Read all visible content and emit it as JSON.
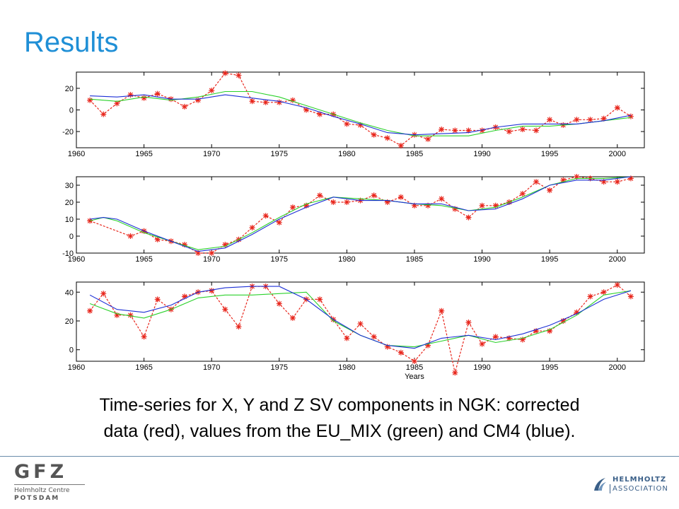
{
  "slide": {
    "title": "Results",
    "caption_line1": "Time-series for X, Y and  Z SV components in NGK: corrected",
    "caption_line2": "data (red), values from the  EU_MIX (green) and CM4 (blue).",
    "gfz_logo": "GFZ",
    "gfz_line1": "Helmholtz Centre",
    "gfz_line2": "POTSDAM",
    "helmholtz_line1": "HELMHOLTZ",
    "helmholtz_line2": "ASSOCIATION"
  },
  "colors": {
    "title": "#1f8fd6",
    "corrected": "#e8261c",
    "eu_mix": "#2bd12b",
    "cm4": "#1c2fd6"
  },
  "chart_data": [
    {
      "type": "line",
      "xlim": [
        1960,
        2002
      ],
      "ylim": [
        -35,
        35
      ],
      "xticks": [
        1960,
        1965,
        1970,
        1975,
        1980,
        1985,
        1990,
        1995,
        2000
      ],
      "yticks": [
        20,
        0,
        -20
      ],
      "ytick_labels": [
        "20",
        "0",
        "-20"
      ],
      "xlabel": "",
      "series": [
        {
          "key": "corrected",
          "color": "#e8261c",
          "markers": true,
          "x": [
            1961,
            1962,
            1963,
            1964,
            1965,
            1966,
            1967,
            1968,
            1969,
            1970,
            1971,
            1972,
            1973,
            1974,
            1975,
            1976,
            1977,
            1978,
            1979,
            1980,
            1981,
            1982,
            1983,
            1984,
            1985,
            1986,
            1987,
            1988,
            1989,
            1990,
            1991,
            1992,
            1993,
            1994,
            1995,
            1996,
            1997,
            1998,
            1999,
            2000,
            2001
          ],
          "values": [
            9,
            -4,
            6,
            14,
            11,
            15,
            10,
            3,
            9,
            18,
            34,
            32,
            8,
            7,
            7,
            9,
            0,
            -4,
            -4,
            -13,
            -14,
            -23,
            -26,
            -33,
            -23,
            -27,
            -18,
            -19,
            -19,
            -19,
            -16,
            -20,
            -18,
            -19,
            -9,
            -14,
            -9,
            -9,
            -8,
            2,
            -6
          ]
        },
        {
          "key": "eu_mix",
          "color": "#2bd12b",
          "markers": false,
          "x": [
            1961,
            1963,
            1965,
            1967,
            1969,
            1971,
            1973,
            1975,
            1977,
            1979,
            1981,
            1983,
            1985,
            1987,
            1989,
            1991,
            1993,
            1995,
            1997,
            1999,
            2001
          ],
          "values": [
            10,
            8,
            12,
            9,
            12,
            17,
            17,
            12,
            4,
            -4,
            -12,
            -19,
            -24,
            -24,
            -24,
            -19,
            -15,
            -15,
            -13,
            -10,
            -7
          ]
        },
        {
          "key": "cm4",
          "color": "#1c2fd6",
          "markers": false,
          "x": [
            1961,
            1963,
            1965,
            1967,
            1969,
            1971,
            1973,
            1975,
            1977,
            1979,
            1981,
            1983,
            1985,
            1987,
            1989,
            1991,
            1993,
            1995,
            1997,
            1999,
            2001
          ],
          "values": [
            13,
            12,
            14,
            10,
            10,
            14,
            11,
            8,
            2,
            -6,
            -13,
            -21,
            -23,
            -22,
            -21,
            -16,
            -13,
            -13,
            -13,
            -10,
            -5
          ]
        }
      ]
    },
    {
      "type": "line",
      "xlim": [
        1960,
        2002
      ],
      "ylim": [
        -10,
        35
      ],
      "xticks": [
        1960,
        1965,
        1970,
        1975,
        1980,
        1985,
        1990,
        1995,
        2000
      ],
      "yticks": [
        30,
        20,
        10,
        0,
        -10
      ],
      "ytick_labels": [
        "30",
        "20",
        "10",
        "0",
        "-10"
      ],
      "xlabel": "",
      "series": [
        {
          "key": "corrected",
          "color": "#e8261c",
          "markers": true,
          "x": [
            1961,
            1964,
            1965,
            1966,
            1967,
            1968,
            1969,
            1970,
            1971,
            1972,
            1973,
            1974,
            1975,
            1976,
            1977,
            1978,
            1979,
            1980,
            1981,
            1982,
            1983,
            1984,
            1985,
            1986,
            1987,
            1988,
            1989,
            1990,
            1991,
            1992,
            1993,
            1994,
            1995,
            1996,
            1997,
            1998,
            1999,
            2000,
            2001
          ],
          "values": [
            9,
            0,
            3,
            -2,
            -3,
            -5,
            -10,
            -10,
            -5,
            -2,
            5,
            12,
            8,
            17,
            18,
            24,
            20,
            20,
            21,
            24,
            20,
            23,
            18,
            18,
            22,
            16,
            11,
            18,
            18,
            20,
            25,
            32,
            27,
            33,
            35,
            34,
            32,
            32,
            34
          ]
        },
        {
          "key": "eu_mix",
          "color": "#2bd12b",
          "markers": false,
          "x": [
            1961,
            1962,
            1963,
            1965,
            1967,
            1969,
            1971,
            1973,
            1975,
            1977,
            1979,
            1981,
            1983,
            1985,
            1987,
            1989,
            1991,
            1993,
            1995,
            1997,
            1999,
            2001
          ],
          "values": [
            9,
            11,
            9,
            2,
            -3,
            -8,
            -6,
            2,
            11,
            19,
            23,
            22,
            21,
            19,
            18,
            15,
            17,
            23,
            30,
            34,
            34,
            35
          ]
        },
        {
          "key": "cm4",
          "color": "#1c2fd6",
          "markers": false,
          "x": [
            1961,
            1962,
            1963,
            1965,
            1967,
            1969,
            1971,
            1973,
            1975,
            1977,
            1979,
            1981,
            1983,
            1985,
            1987,
            1989,
            1991,
            1993,
            1995,
            1997,
            1999,
            2001
          ],
          "values": [
            10,
            11,
            10,
            3,
            -3,
            -9,
            -7,
            1,
            10,
            17,
            23,
            21,
            21,
            19,
            19,
            15,
            16,
            22,
            30,
            33,
            33,
            35
          ]
        }
      ]
    },
    {
      "type": "line",
      "xlim": [
        1960,
        2002
      ],
      "ylim": [
        -8,
        47
      ],
      "xticks": [
        1960,
        1965,
        1970,
        1975,
        1980,
        1985,
        1990,
        1995,
        2000
      ],
      "yticks": [
        40,
        20,
        0
      ],
      "ytick_labels": [
        "40",
        "20",
        "0"
      ],
      "xlabel": "Years",
      "series": [
        {
          "key": "corrected",
          "color": "#e8261c",
          "markers": true,
          "x": [
            1961,
            1962,
            1963,
            1964,
            1965,
            1966,
            1967,
            1968,
            1969,
            1970,
            1971,
            1972,
            1973,
            1974,
            1975,
            1976,
            1977,
            1978,
            1979,
            1980,
            1981,
            1982,
            1983,
            1984,
            1985,
            1986,
            1987,
            1988,
            1989,
            1990,
            1991,
            1992,
            1993,
            1994,
            1995,
            1996,
            1997,
            1998,
            1999,
            2000,
            2001
          ],
          "values": [
            27,
            39,
            24,
            24,
            9,
            35,
            28,
            37,
            40,
            41,
            28,
            16,
            44,
            44,
            32,
            22,
            35,
            35,
            21,
            8,
            18,
            9,
            2,
            -2,
            -8,
            3,
            27,
            -16,
            19,
            4,
            9,
            8,
            7,
            13,
            13,
            20,
            26,
            37,
            40,
            45,
            37
          ]
        },
        {
          "key": "eu_mix",
          "color": "#2bd12b",
          "markers": false,
          "x": [
            1961,
            1963,
            1965,
            1967,
            1969,
            1971,
            1973,
            1975,
            1977,
            1979,
            1981,
            1983,
            1985,
            1987,
            1989,
            1991,
            1993,
            1995,
            1997,
            1999,
            2001
          ],
          "values": [
            32,
            25,
            22,
            28,
            36,
            38,
            38,
            39,
            40,
            20,
            10,
            3,
            2,
            6,
            10,
            5,
            8,
            14,
            24,
            38,
            41
          ]
        },
        {
          "key": "cm4",
          "color": "#1c2fd6",
          "markers": false,
          "x": [
            1961,
            1963,
            1965,
            1967,
            1969,
            1971,
            1973,
            1975,
            1977,
            1979,
            1981,
            1983,
            1985,
            1987,
            1989,
            1991,
            1993,
            1995,
            1997,
            1999,
            2001
          ],
          "values": [
            38,
            28,
            26,
            31,
            40,
            43,
            44,
            44,
            35,
            21,
            10,
            3,
            1,
            8,
            10,
            7,
            11,
            17,
            25,
            35,
            41
          ]
        }
      ]
    }
  ]
}
